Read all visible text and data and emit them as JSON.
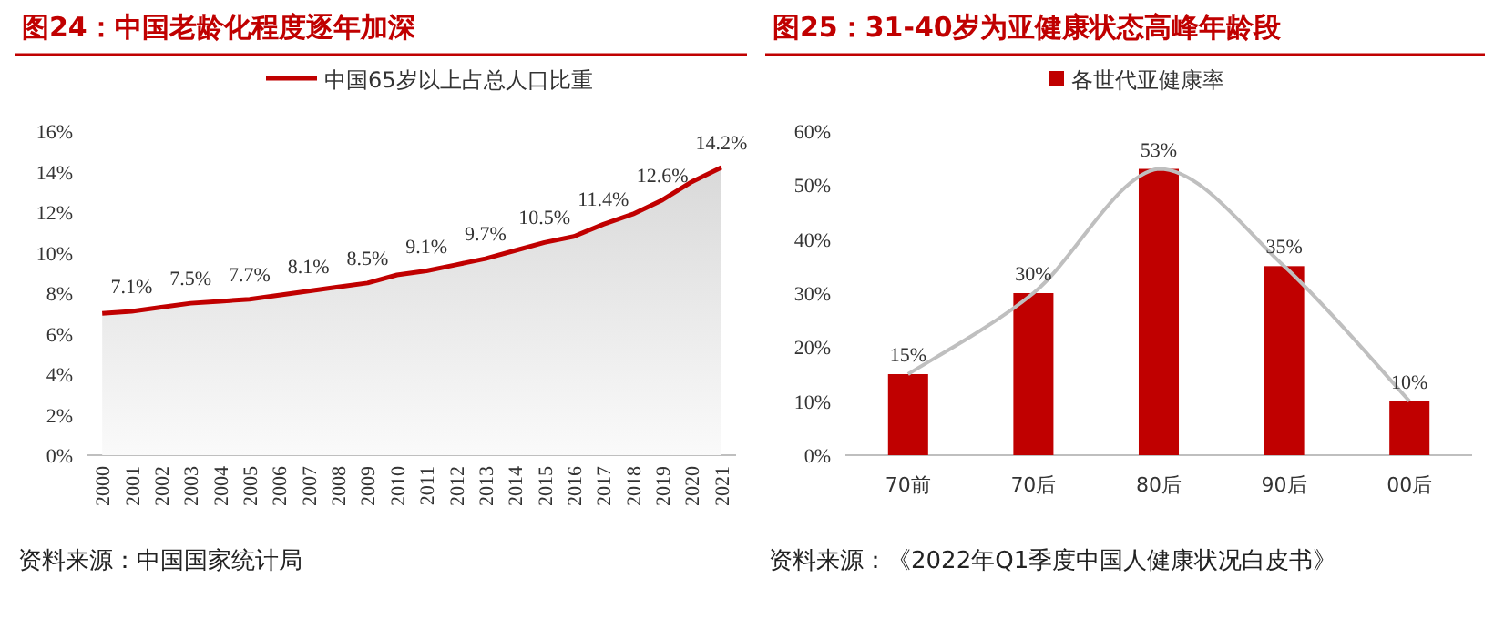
{
  "chart_data": [
    {
      "type": "area",
      "title": "图24：中国老龄化程度逐年加深",
      "legend": "top",
      "categories": [
        "2000",
        "2001",
        "2002",
        "2003",
        "2004",
        "2005",
        "2006",
        "2007",
        "2008",
        "2009",
        "2010",
        "2011",
        "2012",
        "2013",
        "2014",
        "2015",
        "2016",
        "2017",
        "2018",
        "2019",
        "2020",
        "2021"
      ],
      "series": [
        {
          "name": "中国65岁以上占总人口比重",
          "color": "#c00000",
          "values": [
            7.0,
            7.1,
            7.3,
            7.5,
            7.6,
            7.7,
            7.9,
            8.1,
            8.3,
            8.5,
            8.9,
            9.1,
            9.4,
            9.7,
            10.1,
            10.5,
            10.8,
            11.4,
            11.9,
            12.6,
            13.5,
            14.2
          ],
          "value_labels": [
            null,
            "7.1%",
            null,
            "7.5%",
            null,
            "7.7%",
            null,
            "8.1%",
            null,
            "8.5%",
            null,
            "9.1%",
            null,
            "9.7%",
            null,
            "10.5%",
            null,
            "11.4%",
            null,
            "12.6%",
            null,
            "14.2%"
          ]
        }
      ],
      "ylim": [
        0,
        16
      ],
      "yticks": [
        {
          "value": 0,
          "label": "0%"
        },
        {
          "value": 2,
          "label": "2%"
        },
        {
          "value": 4,
          "label": "4%"
        },
        {
          "value": 6,
          "label": "6%"
        },
        {
          "value": 8,
          "label": "8%"
        },
        {
          "value": 10,
          "label": "10%"
        },
        {
          "value": 12,
          "label": "12%"
        },
        {
          "value": 14,
          "label": "14%"
        },
        {
          "value": 16,
          "label": "16%"
        }
      ],
      "annotations": [
        "资料来源：中国国家统计局"
      ]
    },
    {
      "type": "bar",
      "title": "图25：31-40岁为亚健康状态高峰年龄段",
      "legend": "top",
      "categories": [
        "70前",
        "70后",
        "80后",
        "90后",
        "00后"
      ],
      "series": [
        {
          "name": "各世代亚健康率",
          "color": "#c00000",
          "values": [
            15,
            30,
            53,
            35,
            10
          ],
          "value_labels": [
            "15%",
            "30%",
            "53%",
            "35%",
            "10%"
          ]
        },
        {
          "type": "line",
          "color": "#bfbfbf",
          "values": [
            15,
            30,
            53,
            35,
            10
          ]
        }
      ],
      "ylim": [
        0,
        60
      ],
      "yticks": [
        {
          "value": 0,
          "label": "0%"
        },
        {
          "value": 10,
          "label": "10%"
        },
        {
          "value": 20,
          "label": "20%"
        },
        {
          "value": 30,
          "label": "30%"
        },
        {
          "value": 40,
          "label": "40%"
        },
        {
          "value": 50,
          "label": "50%"
        },
        {
          "value": 60,
          "label": "60%"
        }
      ],
      "annotations": [
        "资料来源：《2022年Q1季度中国人健康状况白皮书》"
      ]
    }
  ]
}
